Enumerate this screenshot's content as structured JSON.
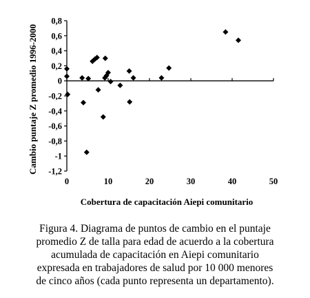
{
  "chart_data": {
    "type": "scatter",
    "title": "",
    "xlabel": "Cobertura de capacitación Aiepi comunitario",
    "ylabel": "Cambio puntaje Z promedio 1996-2000",
    "xlim": [
      0,
      50
    ],
    "ylim": [
      -1.2,
      0.8
    ],
    "xticks": [
      0,
      10,
      20,
      30,
      40,
      50
    ],
    "xtick_labels": [
      "0",
      "10",
      "20",
      "30",
      "40",
      "50"
    ],
    "yticks": [
      0.8,
      0.6,
      0.4,
      0.2,
      0,
      -0.2,
      -0.4,
      -0.6,
      -0.8,
      -1,
      -1.2
    ],
    "ytick_labels": [
      "0,8",
      "0,6",
      "0,4",
      "0,2",
      "0",
      "-0,2",
      "-0,4",
      "-0,6",
      "-0,8",
      "-1",
      "-1,2"
    ],
    "grid": false,
    "legend": false,
    "points": [
      {
        "x": 0.0,
        "y": 0.16
      },
      {
        "x": 0.0,
        "y": 0.06
      },
      {
        "x": 0.2,
        "y": -0.18
      },
      {
        "x": 3.7,
        "y": 0.04
      },
      {
        "x": 4.0,
        "y": -0.29
      },
      {
        "x": 4.8,
        "y": -0.95
      },
      {
        "x": 5.2,
        "y": 0.03
      },
      {
        "x": 6.2,
        "y": 0.26
      },
      {
        "x": 6.8,
        "y": 0.29
      },
      {
        "x": 7.3,
        "y": 0.31
      },
      {
        "x": 7.6,
        "y": -0.12
      },
      {
        "x": 8.8,
        "y": -0.48
      },
      {
        "x": 9.2,
        "y": 0.04
      },
      {
        "x": 9.3,
        "y": 0.3
      },
      {
        "x": 9.6,
        "y": 0.07
      },
      {
        "x": 10.0,
        "y": 0.11
      },
      {
        "x": 10.6,
        "y": -0.01
      },
      {
        "x": 12.9,
        "y": -0.06
      },
      {
        "x": 15.1,
        "y": 0.13
      },
      {
        "x": 15.2,
        "y": -0.28
      },
      {
        "x": 16.1,
        "y": 0.04
      },
      {
        "x": 22.9,
        "y": 0.04
      },
      {
        "x": 24.7,
        "y": 0.17
      },
      {
        "x": 38.4,
        "y": 0.65
      },
      {
        "x": 41.5,
        "y": 0.54
      }
    ]
  },
  "caption": {
    "lines": [
      "Figura 4. Diagrama de puntos de cambio en el puntaje",
      "promedio Z de talla para edad de acuerdo a la cobertura",
      "acumulada de capacitación en Aiepi comunitario",
      "expresada en trabajadores de salud por 10 000 menores",
      "de cinco años (cada punto representa un departamento)."
    ]
  }
}
